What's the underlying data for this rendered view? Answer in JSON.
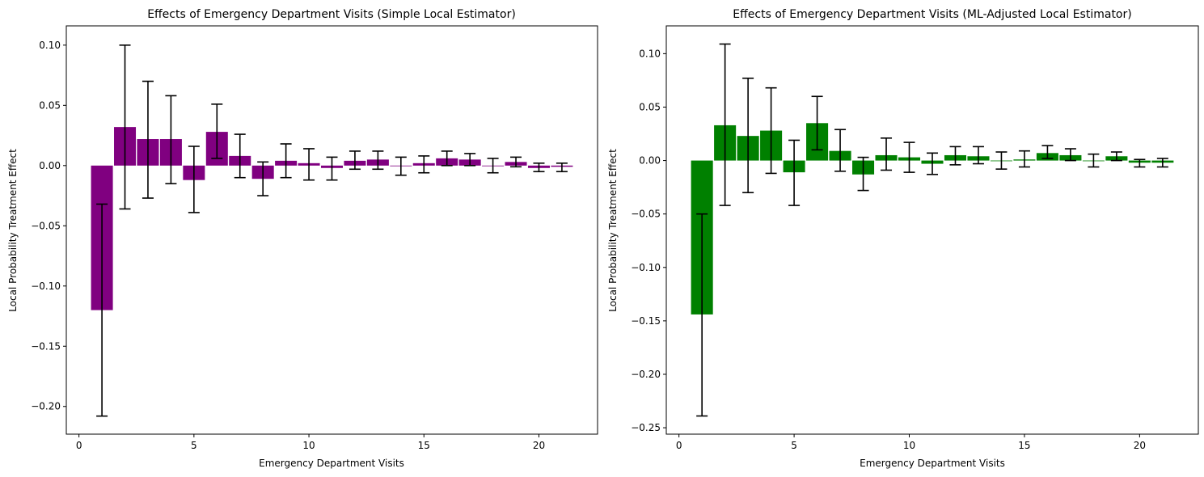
{
  "chart_data": [
    {
      "type": "bar",
      "title": "Effects of Emergency Department Visits (Simple Local Estimator)",
      "xlabel": "Emergency Department Visits",
      "ylabel": "Local Probability Treatment Effect",
      "bar_color": "#800080",
      "error_color": "#000000",
      "xlim": [
        -0.55,
        22.55
      ],
      "ylim": [
        -0.223,
        0.116
      ],
      "xticks": [
        0,
        5,
        10,
        15,
        20
      ],
      "xtick_labels": [
        "0",
        "5",
        "10",
        "15",
        "20"
      ],
      "yticks": [
        -0.2,
        -0.15,
        -0.1,
        -0.05,
        0.0,
        0.05,
        0.1
      ],
      "ytick_labels": [
        "−0.20",
        "−0.15",
        "−0.10",
        "−0.05",
        "0.00",
        "0.05",
        "0.10"
      ],
      "grid": false,
      "x": [
        1,
        2,
        3,
        4,
        5,
        6,
        7,
        8,
        9,
        10,
        11,
        12,
        13,
        14,
        15,
        16,
        17,
        18,
        19,
        20,
        21
      ],
      "values": [
        -0.12,
        0.032,
        0.022,
        0.022,
        -0.012,
        0.028,
        0.008,
        -0.011,
        0.004,
        0.002,
        -0.002,
        0.004,
        0.005,
        0.0,
        0.002,
        0.006,
        0.005,
        0.0,
        0.003,
        -0.002,
        -0.001
      ],
      "ci_low": [
        -0.208,
        -0.036,
        -0.027,
        -0.015,
        -0.039,
        0.006,
        -0.01,
        -0.025,
        -0.01,
        -0.012,
        -0.012,
        -0.003,
        -0.003,
        -0.008,
        -0.006,
        0.0,
        0.0,
        -0.006,
        -0.001,
        -0.005,
        -0.005
      ],
      "ci_high": [
        -0.032,
        0.1,
        0.07,
        0.058,
        0.016,
        0.051,
        0.026,
        0.003,
        0.018,
        0.014,
        0.007,
        0.012,
        0.012,
        0.007,
        0.008,
        0.012,
        0.01,
        0.006,
        0.007,
        0.002,
        0.002
      ]
    },
    {
      "type": "bar",
      "title": "Effects of Emergency Department Visits (ML-Adjusted Local Estimator)",
      "xlabel": "Emergency Department Visits",
      "ylabel": "Local Probability Treatment Effect",
      "bar_color": "#008000",
      "error_color": "#000000",
      "xlim": [
        -0.55,
        22.55
      ],
      "ylim": [
        -0.256,
        0.126
      ],
      "xticks": [
        0,
        5,
        10,
        15,
        20
      ],
      "xtick_labels": [
        "0",
        "5",
        "10",
        "15",
        "20"
      ],
      "yticks": [
        -0.25,
        -0.2,
        -0.15,
        -0.1,
        -0.05,
        0.0,
        0.05,
        0.1
      ],
      "ytick_labels": [
        "−0.25",
        "−0.20",
        "−0.15",
        "−0.10",
        "−0.05",
        "0.00",
        "0.05",
        "0.10"
      ],
      "grid": false,
      "x": [
        1,
        2,
        3,
        4,
        5,
        6,
        7,
        8,
        9,
        10,
        11,
        12,
        13,
        14,
        15,
        16,
        17,
        18,
        19,
        20,
        21
      ],
      "values": [
        -0.144,
        0.033,
        0.023,
        0.028,
        -0.011,
        0.035,
        0.009,
        -0.013,
        0.005,
        0.003,
        -0.003,
        0.005,
        0.004,
        0.0,
        0.001,
        0.007,
        0.005,
        0.0,
        0.004,
        -0.002,
        -0.002
      ],
      "ci_low": [
        -0.239,
        -0.042,
        -0.03,
        -0.012,
        -0.042,
        0.01,
        -0.01,
        -0.028,
        -0.009,
        -0.011,
        -0.013,
        -0.004,
        -0.003,
        -0.008,
        -0.006,
        0.002,
        0.0,
        -0.006,
        0.0,
        -0.006,
        -0.006
      ],
      "ci_high": [
        -0.05,
        0.109,
        0.077,
        0.068,
        0.019,
        0.06,
        0.029,
        0.003,
        0.021,
        0.017,
        0.007,
        0.013,
        0.013,
        0.008,
        0.009,
        0.014,
        0.011,
        0.006,
        0.008,
        0.001,
        0.002
      ]
    }
  ]
}
